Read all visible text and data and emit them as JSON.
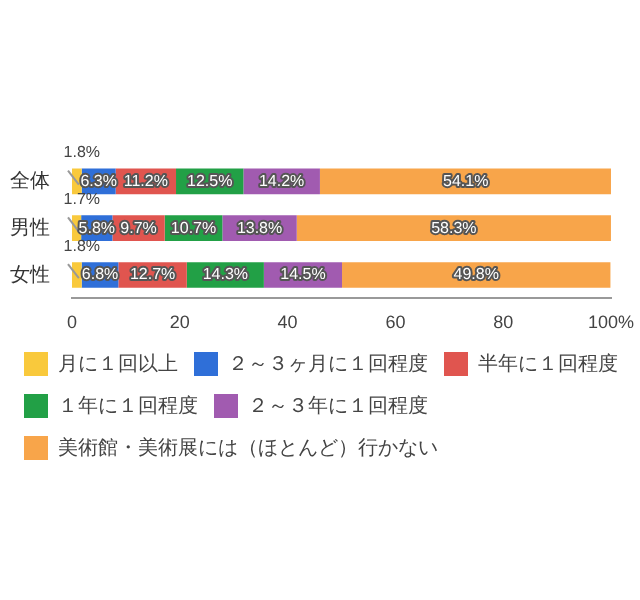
{
  "chart_data": {
    "type": "bar",
    "orientation": "horizontal",
    "stacked": true,
    "categories": [
      "全体",
      "男性",
      "女性"
    ],
    "series": [
      {
        "name": "月に１回以上",
        "color": "#f9c93c",
        "values": [
          1.8,
          1.7,
          1.8
        ],
        "value_labels": [
          "1.8%",
          "1.7%",
          "1.8%"
        ]
      },
      {
        "name": "２～３ヶ月に１回程度",
        "color": "#2f6fd8",
        "values": [
          6.3,
          5.8,
          6.8
        ],
        "value_labels": [
          "6.3%",
          "5.8%",
          "6.8%"
        ]
      },
      {
        "name": "半年に１回程度",
        "color": "#e0554f",
        "values": [
          11.2,
          9.7,
          12.7
        ],
        "value_labels": [
          "11.2%",
          "9.7%",
          "12.7%"
        ]
      },
      {
        "name": "１年に１回程度",
        "color": "#22a046",
        "values": [
          12.5,
          10.7,
          14.3
        ],
        "value_labels": [
          "12.5%",
          "10.7%",
          "14.3%"
        ]
      },
      {
        "name": "２～３年に１回程度",
        "color": "#a15bb0",
        "values": [
          14.2,
          13.8,
          14.5
        ],
        "value_labels": [
          "14.2%",
          "13.8%",
          "14.5%"
        ]
      },
      {
        "name": "美術館・美術展には（ほとんど）行かない",
        "color": "#f8a54a",
        "values": [
          54.1,
          58.3,
          49.8
        ],
        "value_labels": [
          "54.1%",
          "58.3%",
          "49.8%"
        ]
      }
    ],
    "xlim": [
      0,
      100
    ],
    "xticks": [
      0,
      20,
      40,
      60,
      80,
      {
        "value": 100,
        "label": "100%"
      }
    ],
    "grid": false,
    "legend": "bottom"
  }
}
